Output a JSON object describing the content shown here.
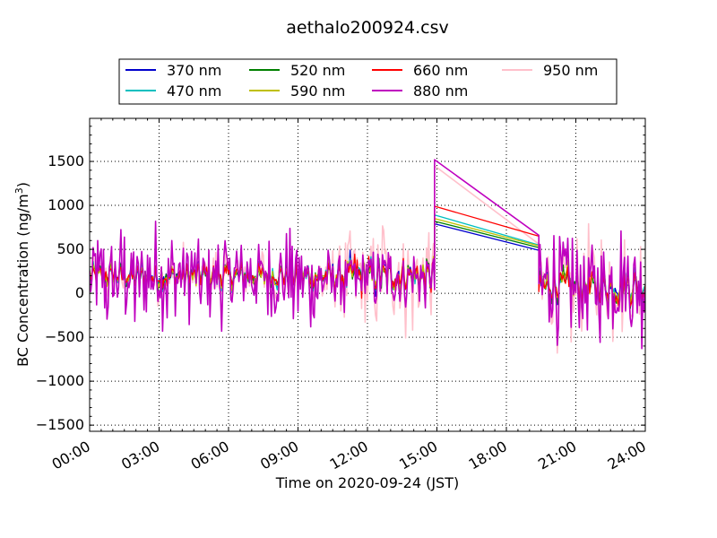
{
  "colors": {
    "370 nm": "#0000cc",
    "470 nm": "#00bfbf",
    "520 nm": "#008000",
    "590 nm": "#bfbf00",
    "660 nm": "#ff0000",
    "880 nm": "#bf00bf",
    "950 nm": "#ffc0cb"
  },
  "chart_data": {
    "type": "line",
    "title": "aethalo200924.csv",
    "xlabel": "Time on 2020-09-24 (JST)",
    "ylabel_prefix": "BC Concentration (ng/m",
    "ylabel_sup": "3",
    "ylabel_suffix": ")",
    "xlim": [
      "00:00",
      "24:00"
    ],
    "ylim": [
      -1570,
      1990
    ],
    "xticks": [
      "00:00",
      "03:00",
      "06:00",
      "09:00",
      "12:00",
      "15:00",
      "18:00",
      "21:00",
      "24:00"
    ],
    "yticks": [
      -1500,
      -1000,
      -500,
      0,
      500,
      1000,
      1500
    ],
    "grid": true,
    "legend_position": "top-center",
    "data_gap": [
      "14:54",
      "19:24"
    ],
    "series": [
      {
        "name": "370 nm",
        "values_at_gap": [
          790,
          490
        ]
      },
      {
        "name": "470 nm",
        "values_at_gap": [
          890,
          550
        ]
      },
      {
        "name": "520 nm",
        "values_at_gap": [
          820,
          520
        ]
      },
      {
        "name": "590 nm",
        "values_at_gap": [
          850,
          540
        ]
      },
      {
        "name": "660 nm",
        "values_at_gap": [
          990,
          650
        ]
      },
      {
        "name": "880 nm",
        "values_at_gap": [
          1520,
          660
        ]
      },
      {
        "name": "950 nm",
        "values_at_gap": [
          1450,
          560
        ]
      }
    ]
  }
}
